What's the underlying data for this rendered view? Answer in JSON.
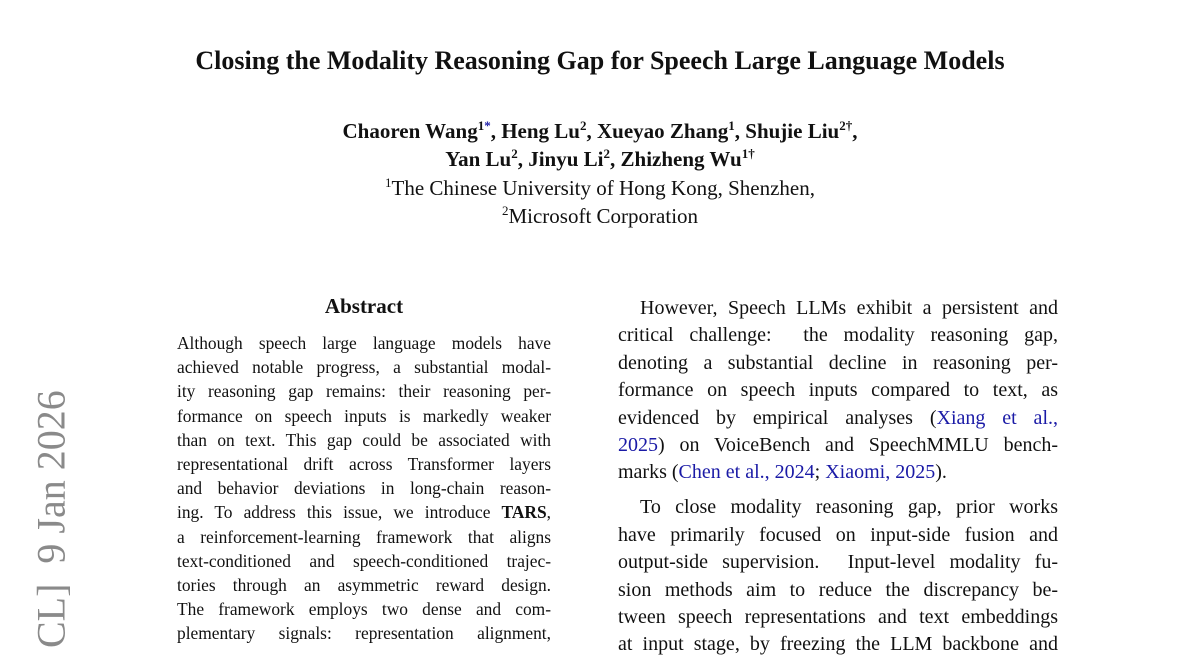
{
  "sidebar": "CL]  9 Jan 2026",
  "header": {
    "title": "Closing the Modality Reasoning Gap for Speech Large Language Models",
    "authors": [
      [
        {
          "text": "Chaoren Wang"
        },
        {
          "text": "1",
          "style": "sup"
        },
        {
          "text": "*",
          "style": "sup-link"
        },
        {
          "text": ", Heng Lu"
        },
        {
          "text": "2",
          "style": "sup"
        },
        {
          "text": ", Xueyao Zhang"
        },
        {
          "text": "1",
          "style": "sup"
        },
        {
          "text": ", Shujie Liu"
        },
        {
          "text": "2†",
          "style": "sup"
        },
        {
          "text": ","
        }
      ],
      [
        {
          "text": "Yan Lu"
        },
        {
          "text": "2",
          "style": "sup"
        },
        {
          "text": ", Jinyu Li"
        },
        {
          "text": "2",
          "style": "sup"
        },
        {
          "text": ", Zhizheng Wu"
        },
        {
          "text": "1†",
          "style": "sup"
        }
      ]
    ],
    "affiliations": [
      [
        {
          "text": "1",
          "style": "sup"
        },
        {
          "text": "The Chinese University of Hong Kong, Shenzhen,"
        }
      ],
      [
        {
          "text": "2",
          "style": "sup"
        },
        {
          "text": "Microsoft Corporation"
        }
      ]
    ]
  },
  "abstract": {
    "heading": "Abstract",
    "lines": [
      [
        {
          "text": "Although speech large language models have"
        }
      ],
      [
        {
          "text": "achieved notable progress, a substantial modal-"
        }
      ],
      [
        {
          "text": "ity reasoning gap remains: their reasoning per-"
        }
      ],
      [
        {
          "text": "formance on speech inputs is markedly weaker"
        }
      ],
      [
        {
          "text": "than on text. This gap could be associated with"
        }
      ],
      [
        {
          "text": "representational drift across Transformer layers"
        }
      ],
      [
        {
          "text": "and behavior deviations in long-chain reason-"
        }
      ],
      [
        {
          "text": "ing. To address this issue, we introduce "
        },
        {
          "text": "TARS",
          "style": "bold"
        },
        {
          "text": ","
        }
      ],
      [
        {
          "text": "a reinforcement-learning framework that aligns"
        }
      ],
      [
        {
          "text": "text-conditioned and speech-conditioned trajec-"
        }
      ],
      [
        {
          "text": "tories through an asymmetric reward design."
        }
      ],
      [
        {
          "text": "The framework employs two dense and com-"
        }
      ],
      [
        {
          "text": "plementary signals: representation alignment,"
        }
      ]
    ]
  },
  "body": {
    "paragraphs": [
      [
        [
          {
            "text": "However, Speech LLMs exhibit a persistent and"
          }
        ],
        [
          {
            "text": "critical challenge:  the modality reasoning gap,"
          }
        ],
        [
          {
            "text": "denoting a substantial decline in reasoning per-"
          }
        ],
        [
          {
            "text": "formance on speech inputs compared to text, as"
          }
        ],
        [
          {
            "text": "evidenced by empirical analyses ("
          },
          {
            "text": "Xiang et al.,",
            "style": "link"
          }
        ],
        [
          {
            "text": "2025",
            "style": "link"
          },
          {
            "text": ") on VoiceBench and SpeechMMLU bench-"
          }
        ],
        [
          {
            "text": "marks ("
          },
          {
            "text": "Chen et al., 2024",
            "style": "link"
          },
          {
            "text": "; "
          },
          {
            "text": "Xiaomi, 2025",
            "style": "link"
          },
          {
            "text": ")."
          }
        ]
      ],
      [
        [
          {
            "text": "To close modality reasoning gap, prior works"
          }
        ],
        [
          {
            "text": "have primarily focused on input-side fusion and"
          }
        ],
        [
          {
            "text": "output-side supervision.  Input-level modality fu-"
          }
        ],
        [
          {
            "text": "sion methods aim to reduce the discrepancy be-"
          }
        ],
        [
          {
            "text": "tween speech representations and text embeddings"
          }
        ],
        [
          {
            "text": "at input stage, by freezing the LLM backbone and"
          }
        ]
      ]
    ]
  }
}
